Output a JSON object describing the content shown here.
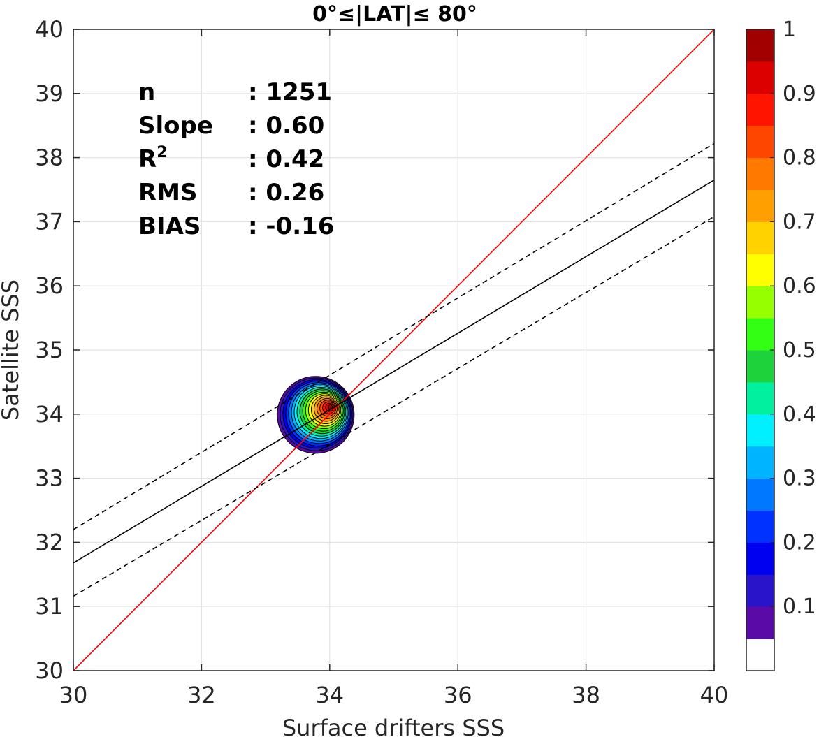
{
  "chart_data": {
    "type": "contour",
    "title": "0°≤|LAT|≤ 80°",
    "xlabel": "Surface drifters SSS",
    "ylabel": "Satellite SSS",
    "xlim": [
      30,
      40
    ],
    "ylim": [
      30,
      40
    ],
    "x_ticks": [
      "30",
      "32",
      "34",
      "36",
      "38",
      "40"
    ],
    "y_ticks": [
      "30",
      "31",
      "32",
      "33",
      "34",
      "35",
      "36",
      "37",
      "38",
      "39",
      "40"
    ],
    "grid": true,
    "stats": [
      {
        "label": "n",
        "value": ": 1251"
      },
      {
        "label": "Slope",
        "value": ": 0.60"
      },
      {
        "label": "R",
        "sup": "2",
        "value": ": 0.42"
      },
      {
        "label": "RMS",
        "value": ": 0.26"
      },
      {
        "label": "BIAS",
        "value": ": -0.16"
      }
    ],
    "lines": [
      {
        "name": "identity",
        "style": "solid",
        "color": "#ff0000",
        "points": [
          [
            30,
            30
          ],
          [
            40,
            40
          ]
        ]
      },
      {
        "name": "regression",
        "style": "solid",
        "color": "#000000",
        "points": [
          [
            30,
            31.68
          ],
          [
            40,
            37.65
          ]
        ]
      },
      {
        "name": "regression-upper",
        "style": "dashed",
        "color": "#000000",
        "points": [
          [
            30,
            32.2
          ],
          [
            40,
            38.22
          ]
        ]
      },
      {
        "name": "regression-lower",
        "style": "dashed",
        "color": "#000000",
        "points": [
          [
            30,
            31.16
          ],
          [
            40,
            37.08
          ]
        ]
      }
    ],
    "density_peak": {
      "x": 34.0,
      "y": 34.12,
      "value": 1.0
    },
    "density_extent": {
      "x": [
        33.3,
        34.5
      ],
      "y": [
        33.35,
        34.55
      ]
    },
    "colorbar": {
      "min": 0,
      "max": 1,
      "tick_labels": [
        "0.1",
        "0.2",
        "0.3",
        "0.4",
        "0.5",
        "0.6",
        "0.7",
        "0.8",
        "0.9",
        "1"
      ],
      "tick_values": [
        0.1,
        0.2,
        0.3,
        0.4,
        0.5,
        0.6,
        0.7,
        0.8,
        0.9,
        1.0
      ],
      "colors": [
        "#ffffff",
        "#5a0aa6",
        "#2a14c9",
        "#0000f0",
        "#0032ff",
        "#0078ff",
        "#00b4ff",
        "#00f0ff",
        "#00f0a0",
        "#1ed23c",
        "#32ff14",
        "#96ff00",
        "#ffff00",
        "#ffd200",
        "#ffa000",
        "#ff7800",
        "#ff4600",
        "#ff1400",
        "#dc0000",
        "#a00000"
      ]
    }
  }
}
